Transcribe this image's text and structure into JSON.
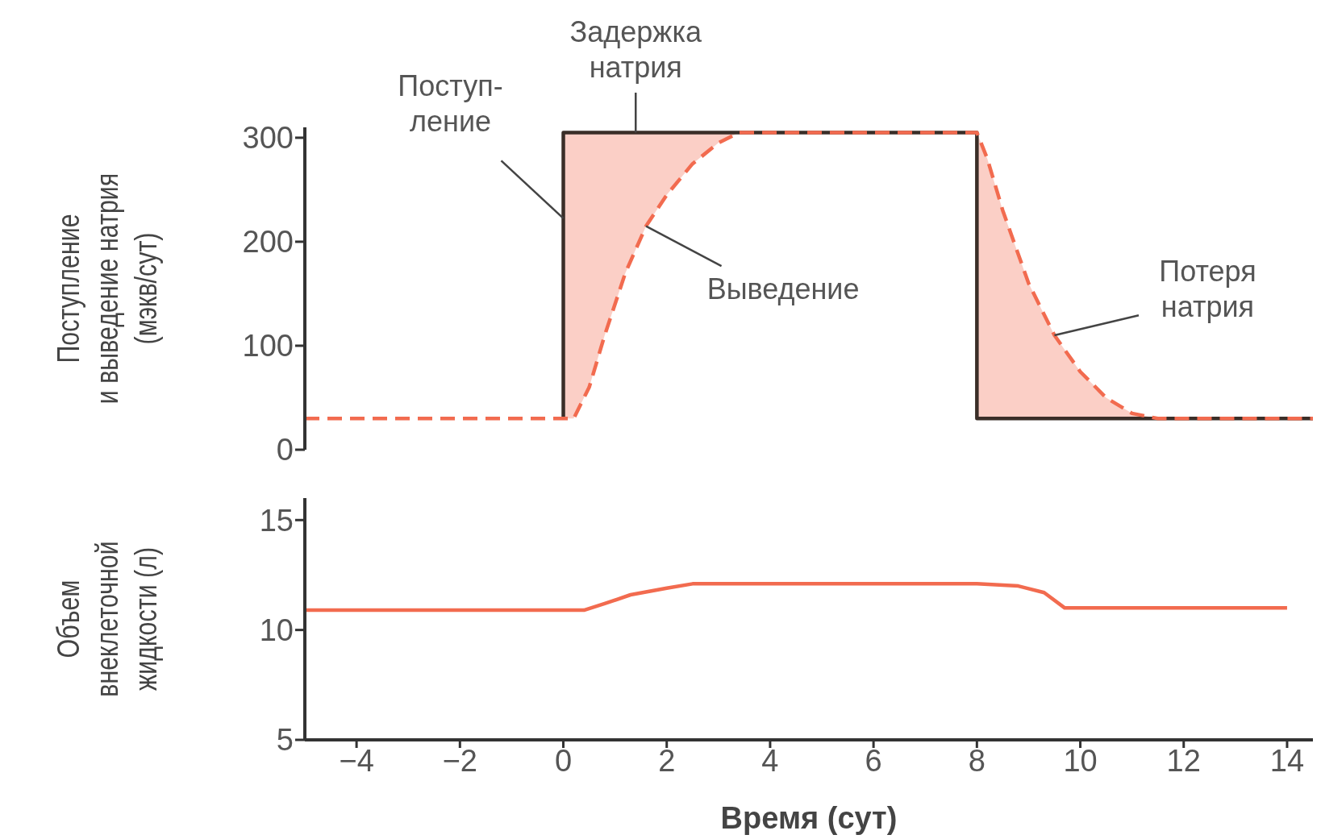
{
  "chart_data": [
    {
      "type": "line",
      "ylabel": "Поступление\nи выведение натрия\n(мэкв/сут)",
      "xlim": [
        -5,
        14.5
      ],
      "ylim": [
        0,
        310
      ],
      "yticks": [
        0,
        100,
        200,
        300
      ],
      "tick_labels": "y",
      "legend": false,
      "grid": false,
      "annotations": [
        {
          "text": "Задержка натрия",
          "x": 1.4,
          "y": 305
        },
        {
          "text": "Потеря натрия",
          "x": 9.5,
          "y": 110
        }
      ],
      "series": [
        {
          "name": "Поступ-ление",
          "line_style": "solid",
          "color": "#3a2e28",
          "x": [
            0,
            0,
            8,
            8,
            14.5
          ],
          "values": [
            30,
            305,
            305,
            30,
            30
          ]
        },
        {
          "name": "Выведение",
          "line_style": "dashed",
          "color": "#f26b4f",
          "x": [
            -5,
            0,
            0,
            0.2,
            0.5,
            0.8,
            1.2,
            1.6,
            2,
            2.5,
            3,
            3.4,
            8,
            8,
            8.2,
            8.5,
            9,
            9.5,
            10,
            10.5,
            11,
            11.5,
            14.5
          ],
          "values": [
            30,
            30,
            30,
            30,
            60,
            110,
            170,
            215,
            245,
            275,
            295,
            305,
            305,
            305,
            280,
            230,
            160,
            110,
            75,
            50,
            35,
            30,
            30
          ],
          "lower": [
            30,
            30,
            30,
            30,
            60,
            110,
            170,
            215,
            245,
            275,
            295,
            305,
            305,
            30,
            30,
            30,
            30,
            30,
            30,
            30,
            30,
            30,
            30
          ],
          "upper": [
            30,
            30,
            305,
            305,
            305,
            305,
            305,
            305,
            305,
            305,
            305,
            305,
            305,
            305,
            280,
            230,
            160,
            110,
            75,
            50,
            35,
            30,
            30
          ]
        }
      ]
    },
    {
      "type": "line",
      "ylabel": "Объем\nвнеклеточной\nжидкости (л)",
      "xlabel": "Время (сут)",
      "xlim": [
        -5,
        14.5
      ],
      "ylim": [
        5,
        16
      ],
      "yticks": [
        5,
        10,
        15
      ],
      "xticks": [
        {
          "value": -4,
          "label": "−4"
        },
        {
          "value": -2,
          "label": "−2"
        },
        0,
        2,
        4,
        6,
        8,
        10,
        12,
        14
      ],
      "legend": false,
      "grid": false,
      "series": [
        {
          "line_style": "solid",
          "color": "#f26b4f",
          "x": [
            -5,
            0.4,
            0.8,
            1.3,
            2,
            2.5,
            8,
            8.8,
            9.3,
            9.7,
            14
          ],
          "values": [
            10.9,
            10.9,
            11.2,
            11.6,
            11.9,
            12.1,
            12.1,
            12,
            11.7,
            11,
            11
          ]
        }
      ]
    }
  ]
}
